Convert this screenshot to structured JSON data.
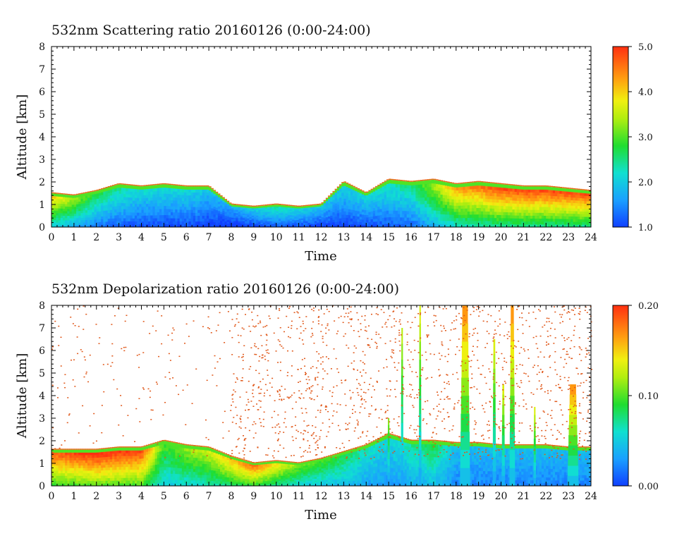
{
  "chart_data": [
    {
      "type": "heatmap",
      "title": "532nm Scattering ratio  20160126 (0:00-24:00)",
      "xlabel": "Time",
      "ylabel": "Altitude [km]",
      "xlim": [
        0,
        24
      ],
      "ylim": [
        0,
        8
      ],
      "x_ticks": [
        "0",
        "1",
        "2",
        "3",
        "4",
        "5",
        "6",
        "7",
        "8",
        "9",
        "10",
        "11",
        "12",
        "13",
        "14",
        "15",
        "16",
        "17",
        "18",
        "19",
        "20",
        "21",
        "22",
        "23",
        "24"
      ],
      "y_ticks": [
        "0",
        "1",
        "2",
        "3",
        "4",
        "5",
        "6",
        "7",
        "8"
      ],
      "colorbar": {
        "min": 1.0,
        "max": 5.0,
        "tick_labels": [
          "1.0",
          "2.0",
          "3.0",
          "4.0",
          "5.0"
        ],
        "colormap": "rainbow"
      },
      "layer_top_km": [
        [
          0,
          1.5
        ],
        [
          1,
          1.4
        ],
        [
          2,
          1.6
        ],
        [
          3,
          1.9
        ],
        [
          4,
          1.8
        ],
        [
          5,
          1.9
        ],
        [
          6,
          1.8
        ],
        [
          7,
          1.8
        ],
        [
          8,
          1.0
        ],
        [
          9,
          0.9
        ],
        [
          10,
          1.0
        ],
        [
          11,
          0.9
        ],
        [
          12,
          1.0
        ],
        [
          13,
          2.0
        ],
        [
          14,
          1.5
        ],
        [
          15,
          2.1
        ],
        [
          16,
          2.0
        ],
        [
          17,
          2.1
        ],
        [
          18,
          1.9
        ],
        [
          19,
          2.0
        ],
        [
          20,
          1.9
        ],
        [
          21,
          1.8
        ],
        [
          22,
          1.8
        ],
        [
          23,
          1.7
        ],
        [
          24,
          1.6
        ]
      ],
      "layer_value": [
        [
          0,
          3.8
        ],
        [
          2,
          2.5
        ],
        [
          4,
          2.0
        ],
        [
          6,
          2.0
        ],
        [
          8,
          1.6
        ],
        [
          10,
          2.2
        ],
        [
          12,
          1.8
        ],
        [
          14,
          2.0
        ],
        [
          16,
          2.3
        ],
        [
          18,
          4.0
        ],
        [
          20,
          4.5
        ],
        [
          22,
          4.5
        ],
        [
          24,
          4.5
        ]
      ]
    },
    {
      "type": "heatmap",
      "title": "532nm Depolarization ratio  20160126 (0:00-24:00)",
      "xlabel": "Time",
      "ylabel": "Altitude [km]",
      "xlim": [
        0,
        24
      ],
      "ylim": [
        0,
        8
      ],
      "x_ticks": [
        "0",
        "1",
        "2",
        "3",
        "4",
        "5",
        "6",
        "7",
        "8",
        "9",
        "10",
        "11",
        "12",
        "13",
        "14",
        "15",
        "16",
        "17",
        "18",
        "19",
        "20",
        "21",
        "22",
        "23",
        "24"
      ],
      "y_ticks": [
        "0",
        "1",
        "2",
        "3",
        "4",
        "5",
        "6",
        "7",
        "8"
      ],
      "colorbar": {
        "min": 0.0,
        "max": 0.2,
        "tick_labels": [
          "0.00",
          "0.10",
          "0.20"
        ],
        "colormap": "rainbow"
      },
      "layer_top_km": [
        [
          0,
          1.6
        ],
        [
          1,
          1.6
        ],
        [
          2,
          1.6
        ],
        [
          3,
          1.7
        ],
        [
          4,
          1.7
        ],
        [
          5,
          2.0
        ],
        [
          6,
          1.8
        ],
        [
          7,
          1.7
        ],
        [
          8,
          1.3
        ],
        [
          9,
          1.0
        ],
        [
          10,
          1.1
        ],
        [
          11,
          1.0
        ],
        [
          12,
          1.2
        ],
        [
          13,
          1.5
        ],
        [
          14,
          1.8
        ],
        [
          15,
          2.3
        ],
        [
          16,
          2.0
        ],
        [
          17,
          2.0
        ],
        [
          18,
          1.9
        ],
        [
          19,
          1.9
        ],
        [
          20,
          1.8
        ],
        [
          21,
          1.8
        ],
        [
          22,
          1.8
        ],
        [
          23,
          1.7
        ],
        [
          24,
          1.7
        ]
      ],
      "layer_value": [
        [
          0,
          0.17
        ],
        [
          2,
          0.19
        ],
        [
          4,
          0.18
        ],
        [
          5,
          0.09
        ],
        [
          7,
          0.12
        ],
        [
          9,
          0.17
        ],
        [
          11,
          0.1
        ],
        [
          13,
          0.08
        ],
        [
          14,
          0.06
        ],
        [
          15,
          0.05
        ],
        [
          17,
          0.08
        ],
        [
          18,
          0.04
        ],
        [
          20,
          0.04
        ],
        [
          24,
          0.04
        ]
      ],
      "plumes": [
        {
          "center": 18.4,
          "width": 0.45,
          "top_km": 8.0,
          "value": 0.15
        },
        {
          "center": 19.7,
          "width": 0.15,
          "top_km": 6.5,
          "value": 0.12
        },
        {
          "center": 20.1,
          "width": 0.15,
          "top_km": 4.5,
          "value": 0.12
        },
        {
          "center": 20.5,
          "width": 0.25,
          "top_km": 8.0,
          "value": 0.15
        },
        {
          "center": 21.5,
          "width": 0.12,
          "top_km": 3.5,
          "value": 0.12
        },
        {
          "center": 23.2,
          "width": 0.5,
          "top_km": 4.5,
          "value": 0.15
        },
        {
          "center": 15.0,
          "width": 0.12,
          "top_km": 3.0,
          "value": 0.1
        },
        {
          "center": 15.6,
          "width": 0.12,
          "top_km": 7.0,
          "value": 0.11
        },
        {
          "center": 16.4,
          "width": 0.12,
          "top_km": 8.0,
          "value": 0.12
        }
      ]
    }
  ]
}
